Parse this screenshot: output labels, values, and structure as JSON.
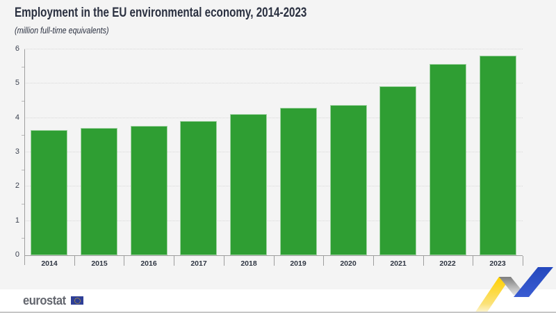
{
  "header": {
    "title": "Employment in the EU environmental economy, 2014-2023",
    "subtitle": "(million full-time equivalents)"
  },
  "chart_data": {
    "type": "bar",
    "title": "Employment in the EU environmental economy, 2014-2023",
    "subtitle": "(million full-time equivalents)",
    "categories": [
      "2014",
      "2015",
      "2016",
      "2017",
      "2018",
      "2019",
      "2020",
      "2021",
      "2022",
      "2023"
    ],
    "values": [
      3.64,
      3.7,
      3.77,
      3.92,
      4.11,
      4.3,
      4.37,
      4.93,
      5.57,
      5.82
    ],
    "xlabel": "",
    "ylabel": "",
    "ylim": [
      0,
      6
    ],
    "yticks": [
      0,
      1,
      2,
      3,
      4,
      5,
      6
    ],
    "grid": "horizontal dotted gridlines at integer values",
    "legend": "none",
    "bar_color": "#2f9e33",
    "units": "million full-time equivalents"
  },
  "footer": {
    "brand": "eurostat",
    "eu_flag_icon": "eu-flag",
    "trend_ribbon_icon": "trend-ribbon"
  },
  "colors": {
    "background": "#f4f4f4",
    "title_navy": "#2a3040",
    "bar_green": "#2f9e33",
    "gridline_gray": "#d8d8d8",
    "axis_gray": "#9d9d9d",
    "footer_white": "#ffffff",
    "eurostat_gray": "#63666e",
    "eu_blue": "#2e3f97",
    "star_yellow": "#ffcc00",
    "ribbon_yellow": "#ffd000",
    "ribbon_gray": "#8d8d8d",
    "ribbon_blue": "#2b50c5"
  }
}
